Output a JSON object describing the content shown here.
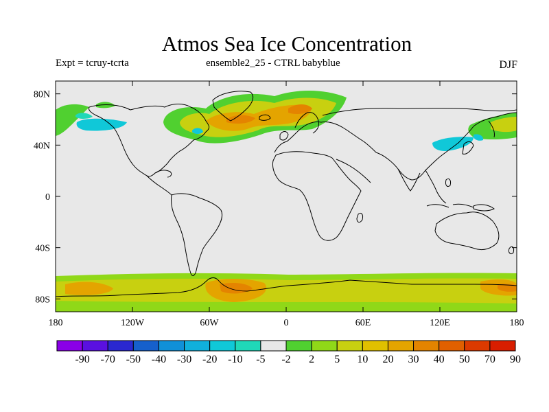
{
  "title": "Atmos Sea Ice Concentration",
  "subtitle_left": "Expt = tcruy-tcrta",
  "subtitle_center": "ensemble2_25 - CTRL babyblue",
  "subtitle_right": "DJF",
  "colors": {
    "ocean_background": "#e8e8e8",
    "coastline": "#000000"
  },
  "axes": {
    "lat_labels": [
      "80N",
      "40N",
      "0",
      "40S",
      "80S"
    ],
    "lat_values": [
      80,
      40,
      0,
      -40,
      -80
    ],
    "lon_labels": [
      "180",
      "120W",
      "60W",
      "0",
      "60E",
      "120E",
      "180"
    ],
    "lon_values": [
      -180,
      -120,
      -60,
      0,
      60,
      120,
      180
    ],
    "lat_range": [
      -90,
      90
    ],
    "lon_range": [
      -180,
      180
    ]
  },
  "colorbar": {
    "colors": [
      "#8a00e6",
      "#5a10e0",
      "#2a28d0",
      "#1660cc",
      "#1090d8",
      "#10b0dc",
      "#10c8d8",
      "#20d8b8",
      "#e8e8e8",
      "#50d030",
      "#90d818",
      "#c8d010",
      "#e0c000",
      "#e4a400",
      "#e48400",
      "#e06000",
      "#dc3a00",
      "#d81e00"
    ],
    "labels": [
      "-90",
      "-70",
      "-50",
      "-40",
      "-30",
      "-20",
      "-10",
      "-5",
      "-2",
      "2",
      "5",
      "10",
      "20",
      "30",
      "40",
      "50",
      "70",
      "90"
    ]
  }
}
